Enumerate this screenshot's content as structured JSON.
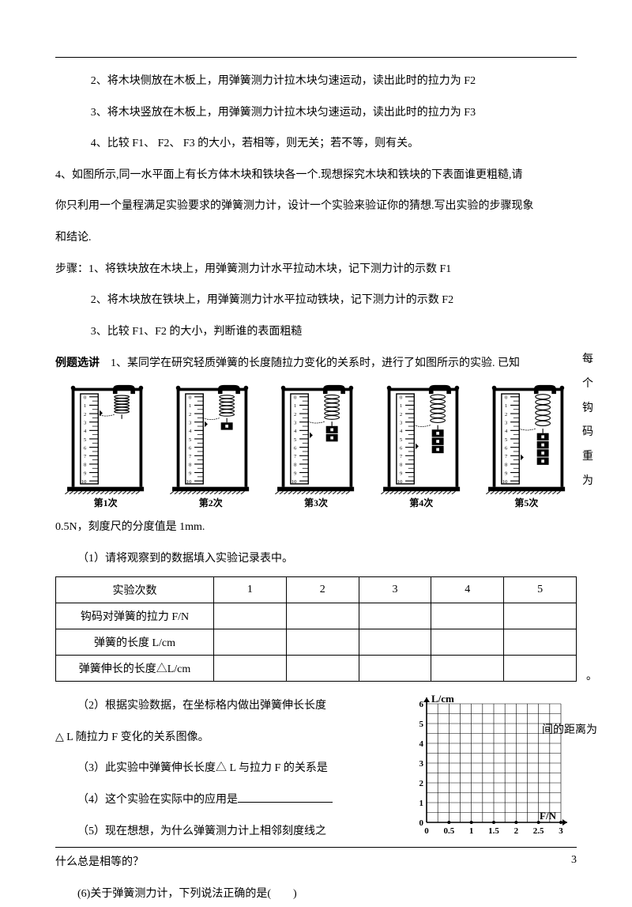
{
  "page": {
    "number": "3"
  },
  "steps_a": {
    "s2": "2、将木块侧放在木板上，用弹簧测力计拉木块匀速运动，读出此时的拉力为 F2",
    "s3": "3、将木块竖放在木板上，用弹簧测力计拉木块匀速运动，读出此时的拉力为 F3",
    "s4": "4、比较 F1、 F2、 F3 的大小，若相等，则无关；若不等，则有关。"
  },
  "q4": {
    "line1": "4、如图所示,同一水平面上有长方体木块和铁块各一个.现想探究木块和铁块的下表面谁更粗糙,请",
    "line2": "你只利用一个量程满足实验要求的弹簧测力计，设计一个实验来验证你的猜想.写出实验的步骤现象",
    "line3": "和结论."
  },
  "steps_b": {
    "header": "步骤：1、将铁块放在木块上，用弹簧测力计水平拉动木块，记下测力计的示数 F1",
    "s2": "2、将木块放在铁块上，用弹簧测力计水平拉动铁块，记下测力计的示数 F2",
    "s3": "3、比较 F1、F2 的大小，判断谁的表面粗糙"
  },
  "example": {
    "label": "例题选讲",
    "q1": "1、某同学在研究轻质弹簧的长度随拉力变化的关系时，进行了如图所示的实验.  已知",
    "side1": "每个",
    "side2": "钩码",
    "side3": "重为",
    "after_img": "0.5N，刻度尺的分度值是 1mm."
  },
  "rulers": {
    "labels": [
      "第1次",
      "第2次",
      "第3次",
      "第4次",
      "第5次"
    ],
    "ticks": [
      "0",
      "1",
      "2",
      "3",
      "4",
      "5",
      "6",
      "7",
      "8",
      "9",
      "10"
    ]
  },
  "subq": {
    "q1": "（1）请将观察到的数据填入实验记录表中。",
    "q2a": "（2）根据实验数据，在坐标格内做出弹簧伸长长度",
    "q2b": "△ L 随拉力 F 变化的关系图像。",
    "q3": "（3）此实验中弹簧伸长长度△  L 与拉力 F 的关系是",
    "q3_end": "。",
    "q4": "（4）这个实验在实际中的应用是",
    "q5a": "（5）现在想想，为什么弹簧测力计上相邻刻度线之",
    "q5b_end": "间的距离为",
    "q5c": "什么总是相等的？",
    "q6": "(6)关于弹簧测力计，下列说法正确的是(　　)"
  },
  "table": {
    "r1": "实验次数",
    "c": [
      "1",
      "2",
      "3",
      "4",
      "5"
    ],
    "r2": "钩码对弹簧的拉力 F/N",
    "r3": "弹簧的长度 L/cm",
    "r4": "弹簧伸长的长度△L/cm"
  },
  "graph": {
    "ylabel": "L/cm",
    "xlabel": "F/N",
    "yticks": [
      "0",
      "1",
      "2",
      "3",
      "4",
      "5",
      "6"
    ],
    "xticks": [
      "0",
      "0.5",
      "1",
      "1.5",
      "2",
      "2.5",
      "3"
    ],
    "grid_color": "#000000",
    "bg": "#ffffff"
  }
}
